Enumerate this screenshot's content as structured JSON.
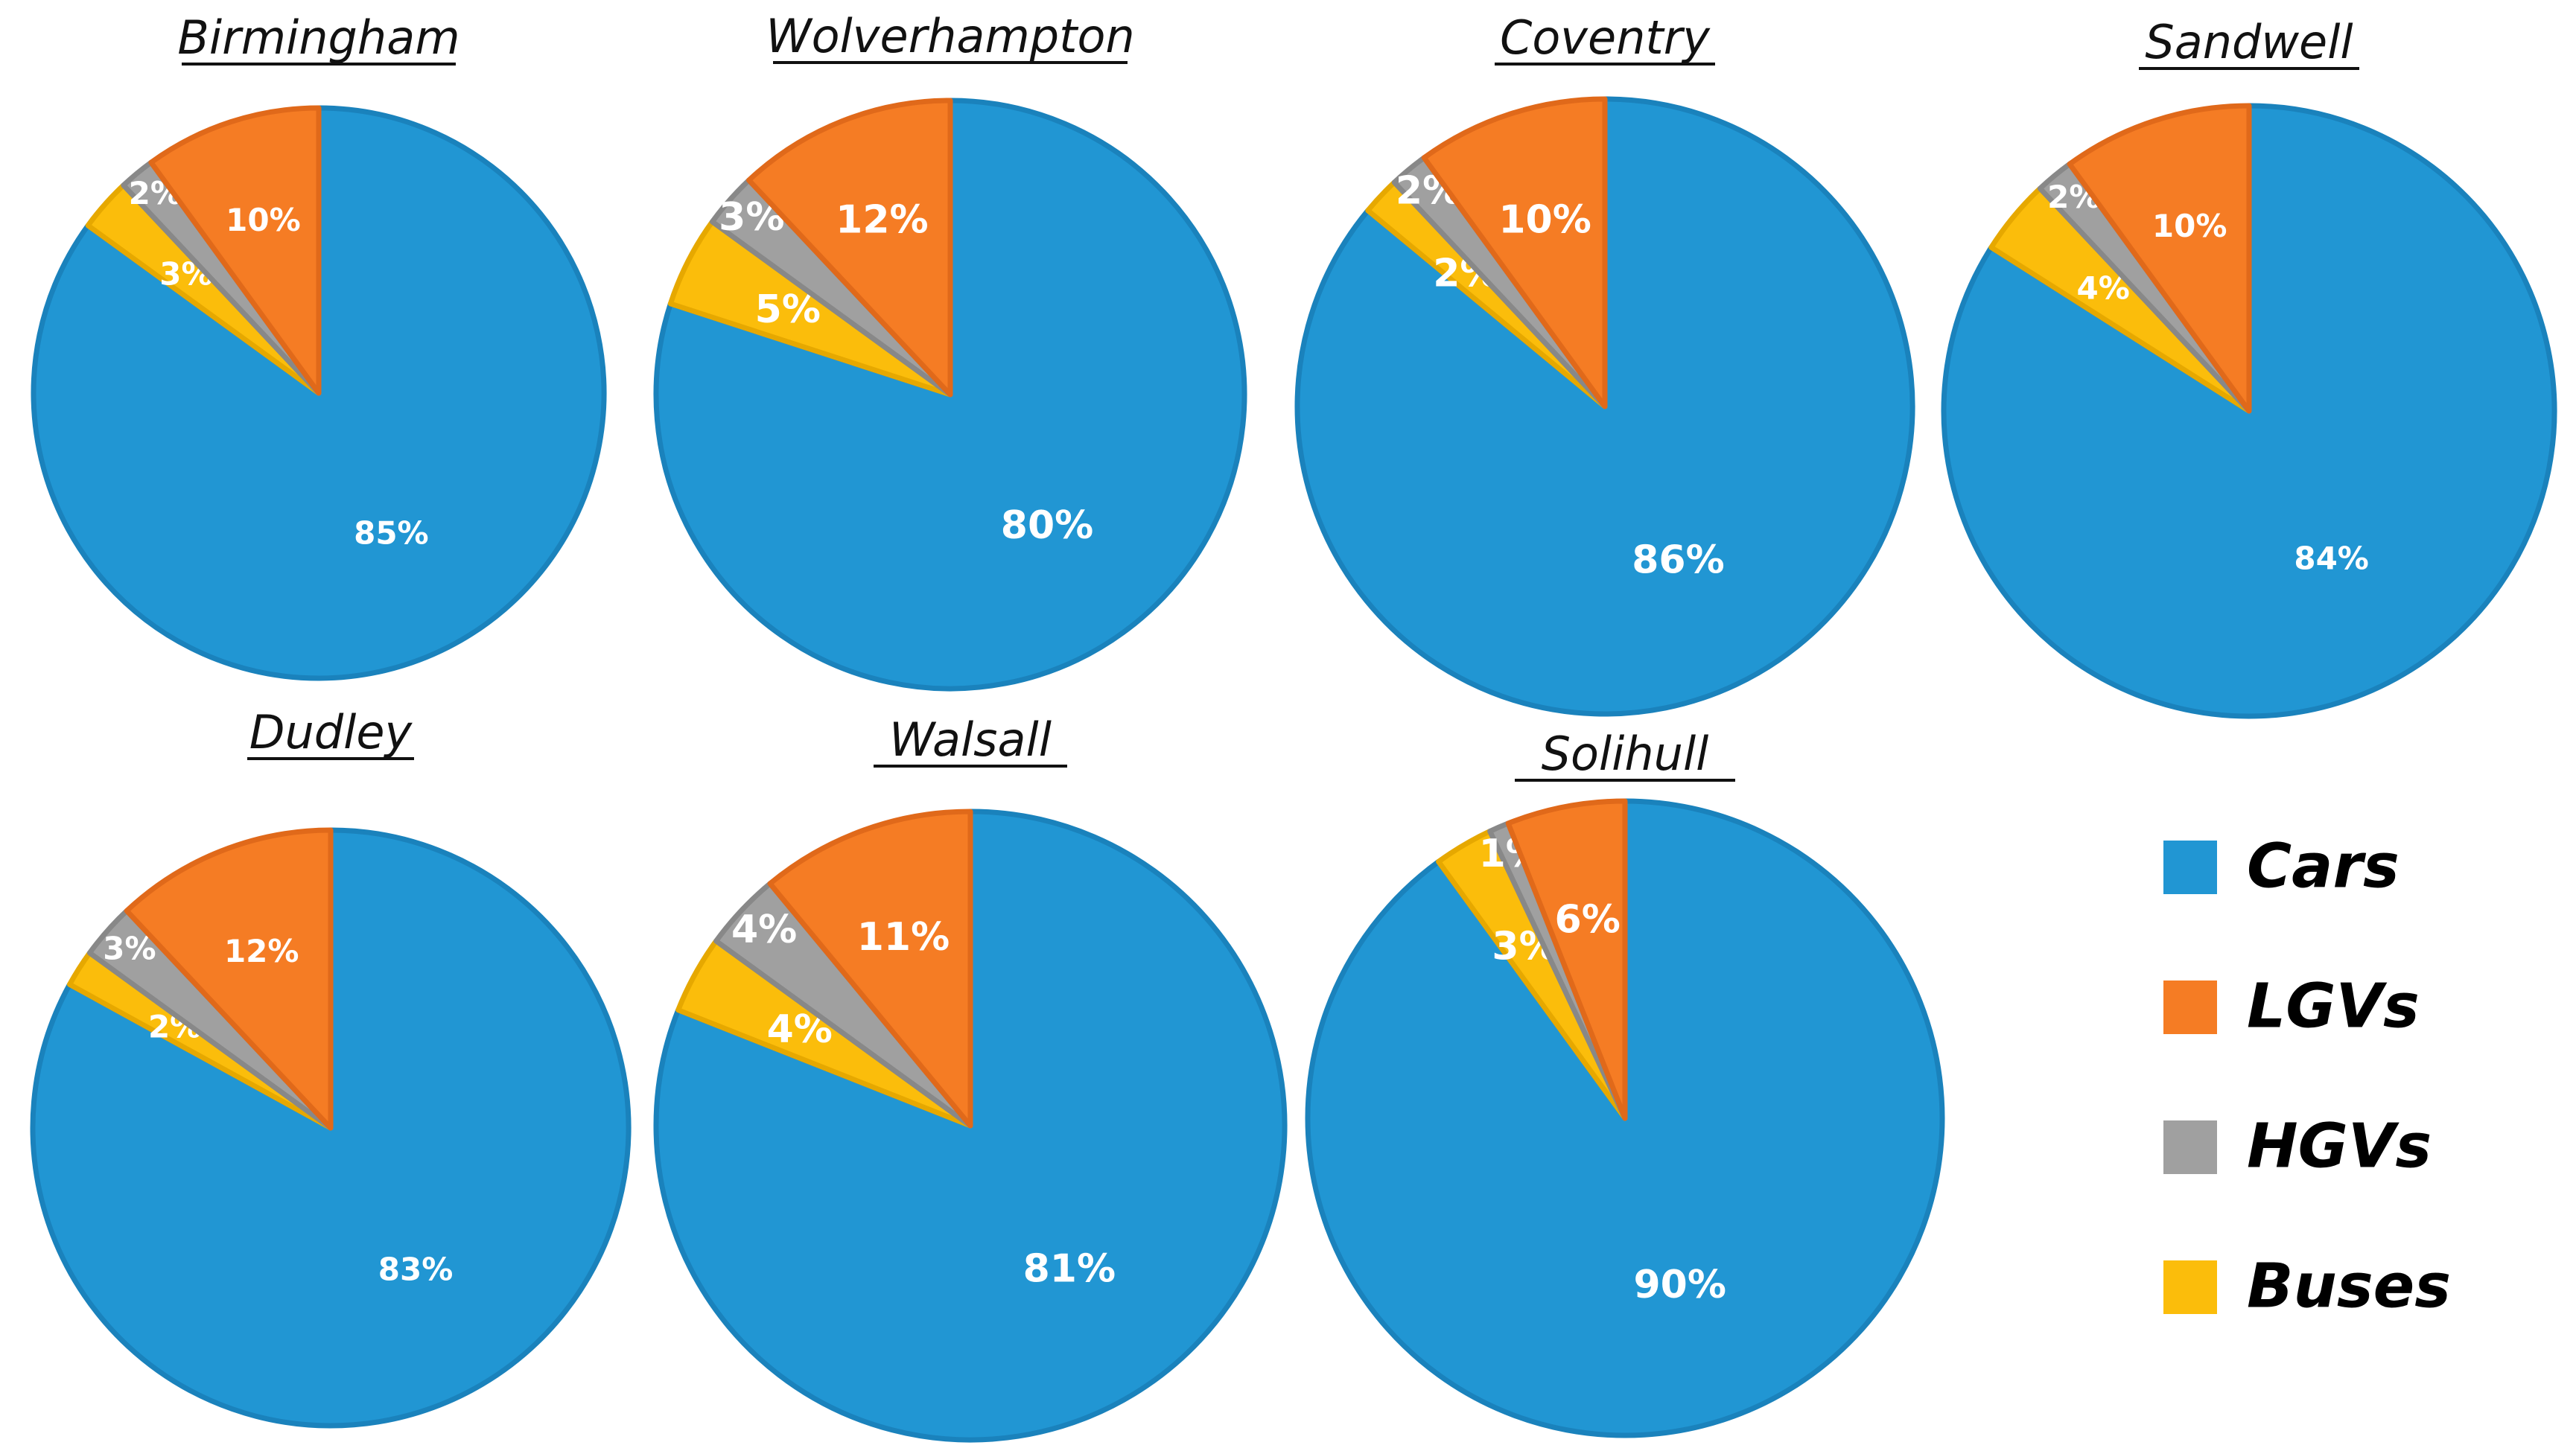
{
  "chart_data": {
    "type": "pie",
    "categories": [
      "Cars",
      "LGVs",
      "HGVs",
      "Buses"
    ],
    "colors": {
      "Cars": "#2196d3",
      "LGVs": "#f57c24",
      "HGVs": "#a0a0a0",
      "Buses": "#fbbd0b"
    },
    "legend": {
      "position": "bottom-right",
      "items": [
        {
          "label": "Cars"
        },
        {
          "label": "LGVs"
        },
        {
          "label": "HGVs"
        },
        {
          "label": "Buses"
        }
      ]
    },
    "pies": [
      {
        "title": "Birmingham",
        "values": [
          85,
          10,
          2,
          3
        ],
        "labels": [
          "85%",
          "10%",
          "2%",
          "3%"
        ]
      },
      {
        "title": "Wolverhampton",
        "values": [
          80,
          12,
          3,
          5
        ],
        "labels": [
          "80%",
          "12%",
          "3%",
          "5%"
        ]
      },
      {
        "title": "Coventry",
        "values": [
          86,
          10,
          2,
          2
        ],
        "labels": [
          "86%",
          "10%",
          "2%",
          "2%"
        ]
      },
      {
        "title": "Sandwell",
        "values": [
          84,
          10,
          2,
          4
        ],
        "labels": [
          "84%",
          "10%",
          "2%",
          "4%"
        ]
      },
      {
        "title": "Dudley",
        "values": [
          83,
          12,
          3,
          2
        ],
        "labels": [
          "83%",
          "12%",
          "3%",
          "2%"
        ]
      },
      {
        "title": "Walsall",
        "values": [
          81,
          11,
          4,
          4
        ],
        "labels": [
          "81%",
          "11%",
          "4%",
          "4%"
        ]
      },
      {
        "title": "Solihull",
        "values": [
          90,
          6,
          1,
          3
        ],
        "labels": [
          "90%",
          "6%",
          "1%",
          "3%"
        ]
      }
    ]
  }
}
